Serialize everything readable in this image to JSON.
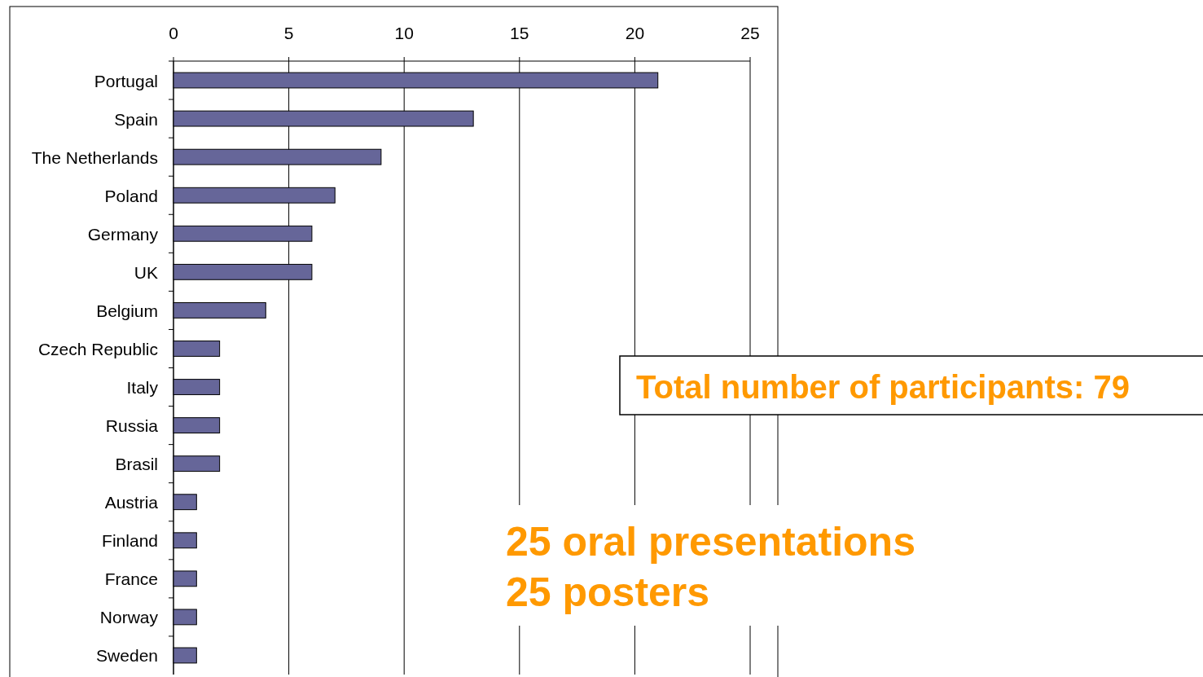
{
  "chart_data": {
    "type": "bar",
    "orientation": "horizontal",
    "categories": [
      "Portugal",
      "Spain",
      "The Netherlands",
      "Poland",
      "Germany",
      "UK",
      "Belgium",
      "Czech Republic",
      "Italy",
      "Russia",
      "Brasil",
      "Austria",
      "Finland",
      "France",
      "Norway",
      "Sweden"
    ],
    "values": [
      21,
      13,
      9,
      7,
      6,
      6,
      4,
      2,
      2,
      2,
      2,
      1,
      1,
      1,
      1,
      1
    ],
    "color": "#666699",
    "xlim": [
      0,
      25
    ],
    "xticks": [
      0,
      5,
      10,
      15,
      20,
      25
    ],
    "grid": "x",
    "annotations": [
      "Total number of participants: 79",
      "25 oral presentations",
      "25 posters"
    ]
  }
}
